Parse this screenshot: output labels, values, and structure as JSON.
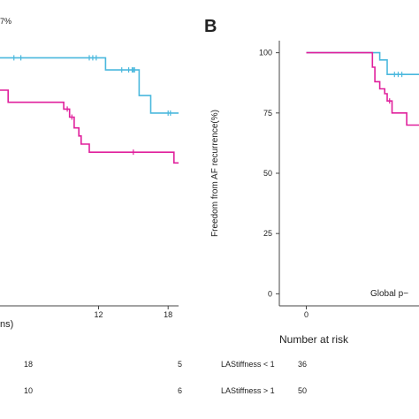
{
  "colors": {
    "low": "#4ab8dd",
    "high": "#e0209c",
    "axis": "#444444",
    "text": "#222222"
  },
  "panel_a": {
    "corner_text": "7%",
    "x_axis_fragment": "ns)",
    "risk_table": [
      {
        "values": [
          "18",
          "5"
        ]
      },
      {
        "values": [
          "10",
          "6"
        ]
      }
    ]
  },
  "panel_b": {
    "label": "B",
    "ylabel": "Freedom from AF recurrence(%)",
    "p_text": "Global p−",
    "risk_title": "Number at risk",
    "risk_table": [
      {
        "label": "LAStiffness < 1",
        "value": "36"
      },
      {
        "label": "LAStiffness > 1",
        "value": "50"
      }
    ]
  },
  "chart_data": [
    {
      "type": "line",
      "panel": "A",
      "xticks": [
        12,
        18
      ],
      "xlim": [
        3.5,
        18.9
      ],
      "ylim": [
        0,
        100
      ],
      "series": [
        {
          "color": "#4ab8dd",
          "x": [
            3.5,
            12.6,
            12.6,
            15.5,
            15.5,
            16.5,
            16.5,
            18.9
          ],
          "y": [
            92,
            92,
            87.5,
            87.5,
            78,
            78,
            71.5,
            71.5
          ],
          "censor_x": [
            4.7,
            5.3,
            11.2,
            11.5,
            11.8,
            14.0,
            14.6,
            14.9,
            15.0,
            15.1,
            18.0,
            18.2
          ]
        },
        {
          "color": "#e0209c",
          "x": [
            3.5,
            4.2,
            4.2,
            9.0,
            9.0,
            9.5,
            9.5,
            9.9,
            9.9,
            10.3,
            10.3,
            10.5,
            10.5,
            11.2,
            11.2,
            18.5,
            18.5,
            18.9
          ],
          "y": [
            80,
            80,
            75.5,
            75.5,
            73,
            73,
            70,
            70,
            66,
            66,
            63,
            63,
            60,
            60,
            57,
            57,
            53,
            53
          ],
          "censor_x": [
            9.3,
            9.7,
            15.0
          ]
        }
      ]
    },
    {
      "type": "line",
      "panel": "B",
      "yticks": [
        0,
        25,
        50,
        75,
        100
      ],
      "xticks": [
        0
      ],
      "xlim": [
        -1.1,
        4.6
      ],
      "ylim": [
        -5,
        105
      ],
      "series": [
        {
          "color": "#4ab8dd",
          "x": [
            0,
            3.0,
            3.0,
            3.3,
            3.3,
            4.6
          ],
          "y": [
            100,
            100,
            97,
            97,
            91,
            91
          ],
          "censor_x": [
            3.6,
            3.75,
            3.9
          ]
        },
        {
          "color": "#e0209c",
          "x": [
            0,
            2.7,
            2.7,
            2.8,
            2.8,
            3.0,
            3.0,
            3.2,
            3.2,
            3.3,
            3.3,
            3.5,
            3.5,
            4.1,
            4.1,
            4.6
          ],
          "y": [
            100,
            100,
            94,
            94,
            88,
            88,
            85,
            85,
            83,
            83,
            80,
            80,
            75,
            75,
            70,
            70
          ],
          "censor_x": [
            3.4
          ]
        }
      ]
    }
  ]
}
